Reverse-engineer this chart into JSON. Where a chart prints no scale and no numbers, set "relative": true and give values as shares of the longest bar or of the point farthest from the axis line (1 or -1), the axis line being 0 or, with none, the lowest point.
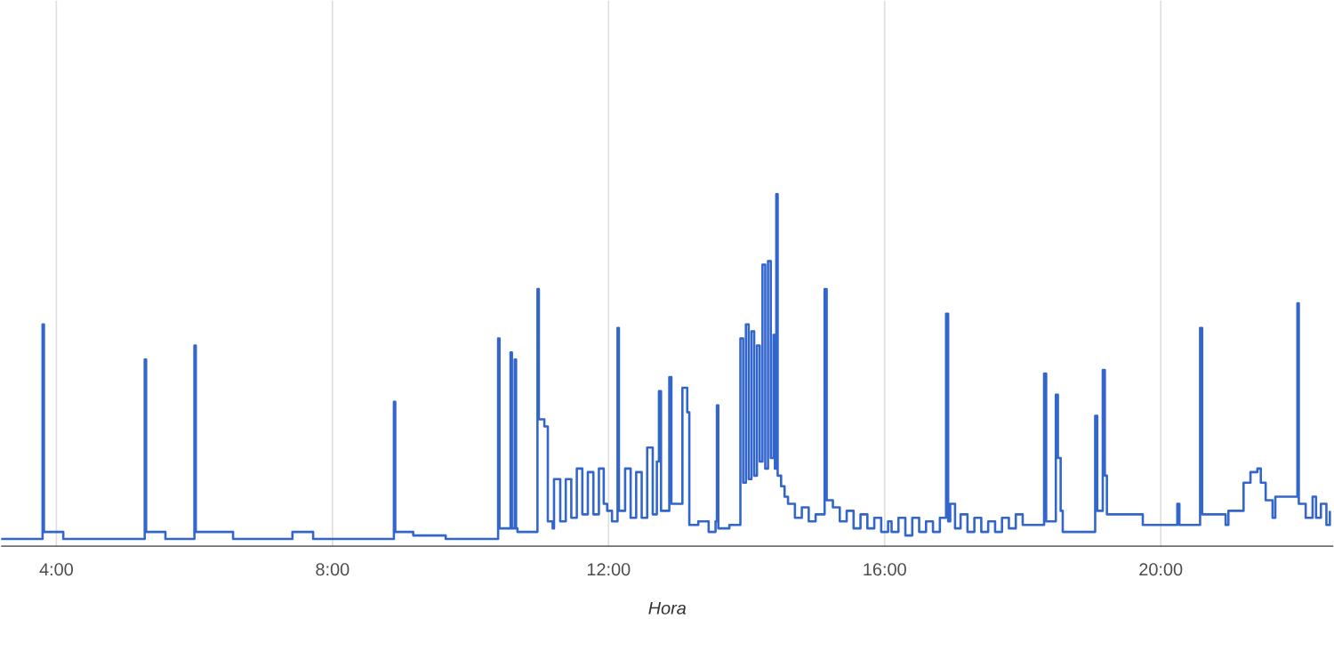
{
  "chart_data": {
    "type": "step",
    "relative": true,
    "xlabel": "Hora",
    "color": "#3366cc",
    "grid": true,
    "xlim": [
      3.2,
      22.5
    ],
    "xticks": [
      {
        "value": 4,
        "label": "4:00"
      },
      {
        "value": 8,
        "label": "8:00"
      },
      {
        "value": 12,
        "label": "12:00"
      },
      {
        "value": 16,
        "label": "16:00"
      },
      {
        "value": 20,
        "label": "20:00"
      }
    ],
    "x": [
      3.2,
      3.8,
      3.82,
      4.1,
      5.28,
      5.3,
      5.58,
      6.0,
      6.02,
      6.56,
      7.42,
      7.72,
      8.89,
      8.91,
      9.17,
      9.64,
      10.4,
      10.42,
      10.58,
      10.6,
      10.64,
      10.66,
      10.68,
      10.96,
      10.97,
      10.99,
      11.07,
      11.12,
      11.19,
      11.21,
      11.3,
      11.38,
      11.46,
      11.54,
      11.62,
      11.7,
      11.78,
      11.86,
      11.93,
      11.98,
      12.05,
      12.13,
      12.15,
      12.24,
      12.32,
      12.4,
      12.48,
      12.56,
      12.64,
      12.7,
      12.73,
      12.76,
      12.88,
      12.91,
      13.07,
      13.14,
      13.17,
      13.3,
      13.45,
      13.55,
      13.57,
      13.59,
      13.65,
      13.75,
      13.91,
      13.95,
      13.99,
      14.03,
      14.07,
      14.11,
      14.15,
      14.19,
      14.23,
      14.27,
      14.31,
      14.35,
      14.39,
      14.41,
      14.43,
      14.45,
      14.5,
      14.55,
      14.6,
      14.7,
      14.8,
      14.9,
      15.0,
      15.13,
      15.16,
      15.25,
      15.35,
      15.45,
      15.55,
      15.65,
      15.75,
      15.85,
      15.95,
      16.05,
      16.1,
      16.2,
      16.3,
      16.4,
      16.5,
      16.6,
      16.7,
      16.8,
      16.89,
      16.92,
      16.95,
      17.02,
      17.1,
      17.2,
      17.3,
      17.4,
      17.5,
      17.6,
      17.7,
      17.8,
      17.9,
      18.0,
      18.1,
      18.31,
      18.34,
      18.48,
      18.51,
      18.55,
      18.58,
      19.05,
      19.08,
      19.16,
      19.19,
      19.22,
      19.74,
      20.24,
      20.27,
      20.57,
      20.6,
      20.94,
      20.98,
      21.2,
      21.3,
      21.4,
      21.45,
      21.52,
      21.62,
      21.66,
      21.98,
      22.0,
      22.1,
      22.2,
      22.25,
      22.32,
      22.4,
      22.45
    ],
    "values": [
      0.02,
      0.63,
      0.04,
      0.02,
      0.53,
      0.04,
      0.02,
      0.57,
      0.04,
      0.02,
      0.04,
      0.02,
      0.41,
      0.04,
      0.03,
      0.02,
      0.59,
      0.05,
      0.55,
      0.05,
      0.53,
      0.05,
      0.04,
      0.04,
      0.73,
      0.36,
      0.34,
      0.07,
      0.05,
      0.19,
      0.07,
      0.19,
      0.08,
      0.22,
      0.09,
      0.21,
      0.09,
      0.22,
      0.12,
      0.1,
      0.07,
      0.62,
      0.1,
      0.22,
      0.08,
      0.21,
      0.08,
      0.28,
      0.09,
      0.24,
      0.44,
      0.1,
      0.48,
      0.12,
      0.45,
      0.38,
      0.06,
      0.07,
      0.04,
      0.07,
      0.4,
      0.05,
      0.05,
      0.06,
      0.59,
      0.18,
      0.63,
      0.19,
      0.61,
      0.2,
      0.57,
      0.24,
      0.8,
      0.22,
      0.81,
      0.25,
      0.6,
      0.22,
      1.0,
      0.2,
      0.17,
      0.14,
      0.12,
      0.08,
      0.11,
      0.07,
      0.09,
      0.73,
      0.13,
      0.11,
      0.07,
      0.1,
      0.05,
      0.09,
      0.05,
      0.08,
      0.04,
      0.07,
      0.04,
      0.08,
      0.03,
      0.08,
      0.04,
      0.07,
      0.04,
      0.08,
      0.66,
      0.07,
      0.12,
      0.05,
      0.09,
      0.04,
      0.08,
      0.04,
      0.07,
      0.04,
      0.08,
      0.05,
      0.09,
      0.06,
      0.06,
      0.49,
      0.07,
      0.43,
      0.25,
      0.1,
      0.04,
      0.37,
      0.1,
      0.5,
      0.2,
      0.09,
      0.06,
      0.12,
      0.06,
      0.62,
      0.09,
      0.06,
      0.1,
      0.18,
      0.21,
      0.22,
      0.18,
      0.13,
      0.08,
      0.14,
      0.69,
      0.12,
      0.08,
      0.14,
      0.08,
      0.12,
      0.06,
      0.1
    ]
  }
}
